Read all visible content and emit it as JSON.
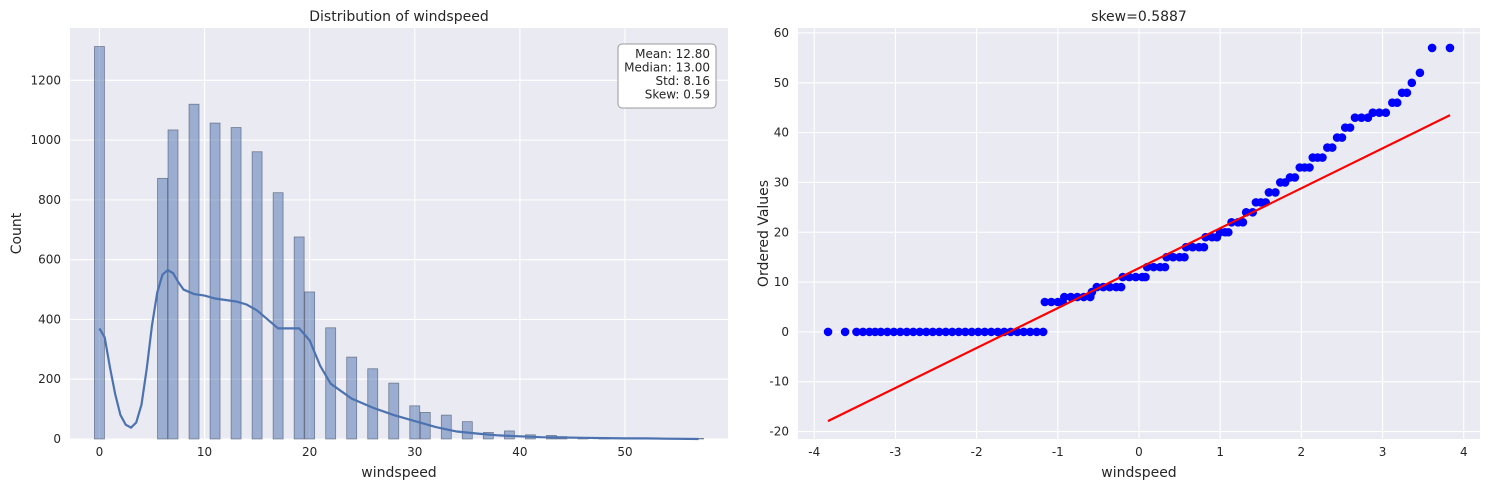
{
  "chart_data": [
    {
      "type": "bar",
      "title": "Distribution of windspeed",
      "xlabel": "windspeed",
      "ylabel": "Count",
      "xlim": [
        -2.8,
        59.8
      ],
      "ylim": [
        0,
        1375
      ],
      "xticks": [
        0,
        10,
        20,
        30,
        40,
        50
      ],
      "xtick_labels": [
        "0",
        "10",
        "20",
        "30",
        "40",
        "50"
      ],
      "yticks": [
        0,
        200,
        400,
        600,
        800,
        1000,
        1200
      ],
      "ytick_labels": [
        "0",
        "200",
        "400",
        "600",
        "800",
        "1000",
        "1200"
      ],
      "grid": true,
      "bin_width": 0.95,
      "bins": [
        {
          "x": 0,
          "count": 1313
        },
        {
          "x": 6.0,
          "count": 872
        },
        {
          "x": 7.0,
          "count": 1034
        },
        {
          "x": 9.0,
          "count": 1120
        },
        {
          "x": 11.0,
          "count": 1057
        },
        {
          "x": 13.0,
          "count": 1042
        },
        {
          "x": 15.0,
          "count": 961
        },
        {
          "x": 17.0,
          "count": 824
        },
        {
          "x": 19.0,
          "count": 676
        },
        {
          "x": 20.0,
          "count": 492
        },
        {
          "x": 22.0,
          "count": 372
        },
        {
          "x": 24.0,
          "count": 274
        },
        {
          "x": 26.0,
          "count": 235
        },
        {
          "x": 28.0,
          "count": 187
        },
        {
          "x": 30.0,
          "count": 111
        },
        {
          "x": 31.0,
          "count": 89
        },
        {
          "x": 33.0,
          "count": 80
        },
        {
          "x": 35.0,
          "count": 58
        },
        {
          "x": 37.0,
          "count": 22
        },
        {
          "x": 39.0,
          "count": 27
        },
        {
          "x": 41.0,
          "count": 14
        },
        {
          "x": 43.0,
          "count": 12
        },
        {
          "x": 44.0,
          "count": 8
        },
        {
          "x": 46.0,
          "count": 3
        },
        {
          "x": 48.0,
          "count": 2
        },
        {
          "x": 51.0,
          "count": 2
        },
        {
          "x": 54.0,
          "count": 1
        },
        {
          "x": 57.0,
          "count": 2
        }
      ],
      "kde": {
        "x": [
          0,
          0.5,
          1,
          1.5,
          2,
          2.5,
          3,
          3.5,
          4,
          4.5,
          5,
          5.5,
          6,
          6.5,
          7,
          7.5,
          8,
          9,
          10,
          11,
          12,
          13,
          14,
          15,
          16,
          17,
          18,
          19,
          20,
          21,
          22,
          24,
          26,
          28,
          30,
          32,
          34,
          36,
          38,
          40,
          42,
          44,
          46,
          48,
          50,
          52,
          54,
          57
        ],
        "y": [
          370,
          340,
          240,
          150,
          80,
          48,
          38,
          55,
          115,
          235,
          380,
          490,
          550,
          565,
          555,
          525,
          500,
          485,
          480,
          470,
          465,
          460,
          450,
          430,
          400,
          370,
          370,
          370,
          330,
          245,
          185,
          135,
          105,
          80,
          60,
          40,
          25,
          18,
          12,
          9,
          6,
          5,
          4,
          3,
          2,
          2,
          1,
          0
        ]
      },
      "stats": {
        "lines": [
          "Mean: 12.80",
          "Median: 13.00",
          "Std: 8.16",
          "Skew: 0.59"
        ],
        "placement": "top-right"
      }
    },
    {
      "type": "scatter",
      "title": "skew=0.5887",
      "xlabel": "windspeed",
      "ylabel": "Ordered Values",
      "xlim": [
        -4.2,
        4.2
      ],
      "ylim": [
        -21.5,
        61
      ],
      "xticks": [
        -4,
        -3,
        -2,
        -1,
        0,
        1,
        2,
        3,
        4
      ],
      "xtick_labels": [
        "-4",
        "-3",
        "-2",
        "-1",
        "0",
        "1",
        "2",
        "3",
        "4"
      ],
      "yticks": [
        -20,
        -10,
        0,
        10,
        20,
        30,
        40,
        50,
        60
      ],
      "ytick_labels": [
        "-20",
        "-10",
        "0",
        "10",
        "20",
        "30",
        "40",
        "50",
        "60"
      ],
      "grid": true,
      "point_color": "#0000ff",
      "line_color": "#ff0000",
      "fit_line": {
        "x": [
          -3.83,
          3.83
        ],
        "y": [
          -17.9,
          43.5
        ]
      },
      "points": [
        [
          -3.83,
          0
        ],
        [
          -3.62,
          0
        ],
        [
          -3.48,
          0
        ],
        [
          -3.4,
          0
        ],
        [
          -3.32,
          0
        ],
        [
          -3.25,
          0
        ],
        [
          -3.18,
          0
        ],
        [
          -3.1,
          0
        ],
        [
          -3.02,
          0
        ],
        [
          -2.94,
          0
        ],
        [
          -2.86,
          0
        ],
        [
          -2.78,
          0
        ],
        [
          -2.7,
          0
        ],
        [
          -2.62,
          0
        ],
        [
          -2.54,
          0
        ],
        [
          -2.46,
          0
        ],
        [
          -2.38,
          0
        ],
        [
          -2.3,
          0
        ],
        [
          -2.22,
          0
        ],
        [
          -2.14,
          0
        ],
        [
          -2.06,
          0
        ],
        [
          -1.98,
          0
        ],
        [
          -1.9,
          0
        ],
        [
          -1.82,
          0
        ],
        [
          -1.74,
          0
        ],
        [
          -1.66,
          0
        ],
        [
          -1.58,
          0
        ],
        [
          -1.5,
          0
        ],
        [
          -1.42,
          0
        ],
        [
          -1.34,
          0
        ],
        [
          -1.26,
          0
        ],
        [
          -1.18,
          0
        ],
        [
          -1.16,
          6
        ],
        [
          -1.08,
          6
        ],
        [
          -1.0,
          6
        ],
        [
          -0.94,
          6
        ],
        [
          -0.92,
          7
        ],
        [
          -0.84,
          7
        ],
        [
          -0.76,
          7
        ],
        [
          -0.68,
          7
        ],
        [
          -0.6,
          7
        ],
        [
          -0.58,
          8
        ],
        [
          -0.52,
          9
        ],
        [
          -0.44,
          9
        ],
        [
          -0.36,
          9
        ],
        [
          -0.28,
          9
        ],
        [
          -0.22,
          9
        ],
        [
          -0.2,
          11
        ],
        [
          -0.12,
          11
        ],
        [
          -0.04,
          11
        ],
        [
          0.04,
          11
        ],
        [
          0.08,
          11
        ],
        [
          0.1,
          13
        ],
        [
          0.18,
          13
        ],
        [
          0.26,
          13
        ],
        [
          0.32,
          13
        ],
        [
          0.34,
          15
        ],
        [
          0.42,
          15
        ],
        [
          0.5,
          15
        ],
        [
          0.56,
          15
        ],
        [
          0.58,
          17
        ],
        [
          0.66,
          17
        ],
        [
          0.74,
          17
        ],
        [
          0.8,
          17
        ],
        [
          0.82,
          19
        ],
        [
          0.9,
          19
        ],
        [
          0.96,
          19
        ],
        [
          1.0,
          20
        ],
        [
          1.06,
          20
        ],
        [
          1.1,
          20
        ],
        [
          1.14,
          22
        ],
        [
          1.22,
          22
        ],
        [
          1.28,
          22
        ],
        [
          1.32,
          24
        ],
        [
          1.4,
          24
        ],
        [
          1.44,
          26
        ],
        [
          1.5,
          26
        ],
        [
          1.56,
          26
        ],
        [
          1.6,
          28
        ],
        [
          1.68,
          28
        ],
        [
          1.74,
          30
        ],
        [
          1.8,
          30
        ],
        [
          1.86,
          31
        ],
        [
          1.92,
          31
        ],
        [
          1.98,
          33
        ],
        [
          2.04,
          33
        ],
        [
          2.1,
          33
        ],
        [
          2.14,
          35
        ],
        [
          2.2,
          35
        ],
        [
          2.26,
          35
        ],
        [
          2.32,
          37
        ],
        [
          2.38,
          37
        ],
        [
          2.44,
          39
        ],
        [
          2.5,
          39
        ],
        [
          2.54,
          41
        ],
        [
          2.6,
          41
        ],
        [
          2.66,
          43
        ],
        [
          2.74,
          43
        ],
        [
          2.82,
          43
        ],
        [
          2.88,
          44
        ],
        [
          2.96,
          44
        ],
        [
          3.04,
          44
        ],
        [
          3.12,
          46
        ],
        [
          3.18,
          46
        ],
        [
          3.24,
          48
        ],
        [
          3.3,
          48
        ],
        [
          3.36,
          50
        ],
        [
          3.46,
          52
        ],
        [
          3.61,
          57
        ],
        [
          3.83,
          57
        ]
      ]
    }
  ]
}
